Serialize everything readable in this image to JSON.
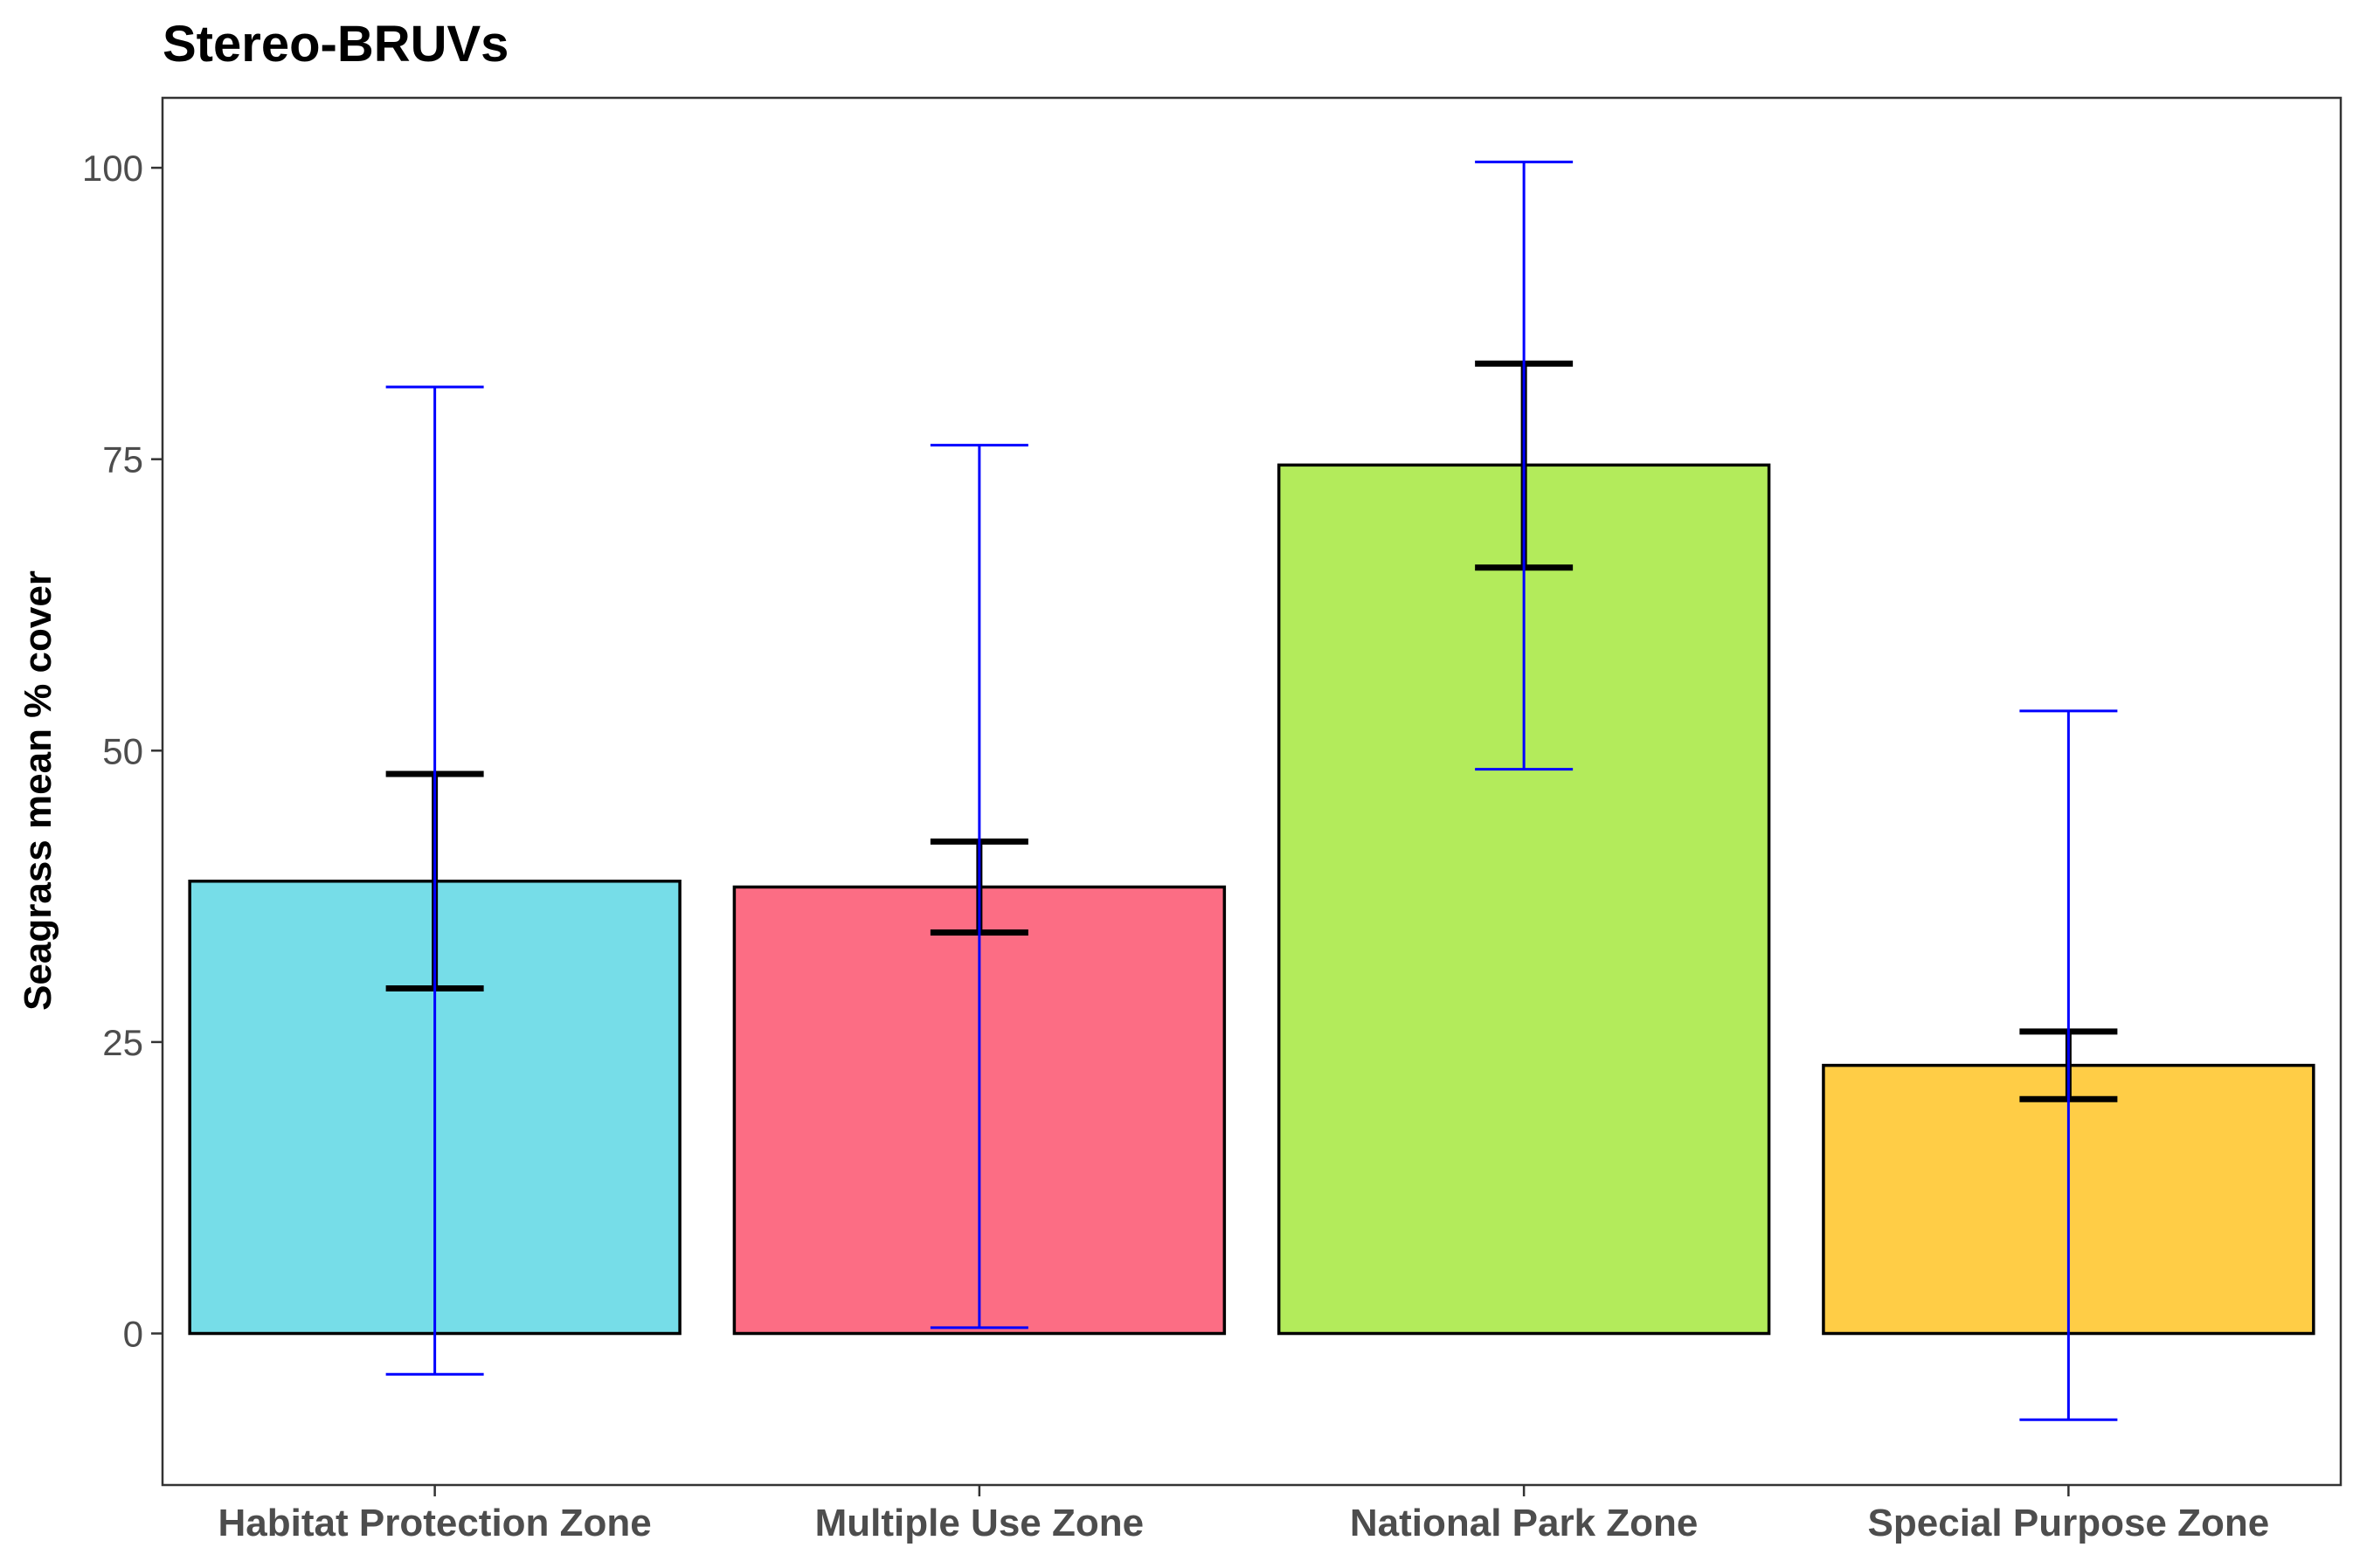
{
  "chart_data": {
    "type": "bar",
    "title": "Stereo-BRUVs",
    "xlabel": "",
    "ylabel": "Seagrass mean % cover",
    "ylim": [
      -13,
      106
    ],
    "yticks": [
      0,
      25,
      50,
      75,
      100
    ],
    "grid": false,
    "legend": "none",
    "categories": [
      "Habitat Protection Zone",
      "Multiple Use Zone",
      "National Park Zone",
      "Special Purpose Zone"
    ],
    "values": [
      38.8,
      38.3,
      74.5,
      23.0
    ],
    "colors": [
      "#76DDE8",
      "#FC6D84",
      "#B3EB5B",
      "#FFCD46"
    ],
    "se_error": [
      {
        "low": 29.6,
        "high": 48.0
      },
      {
        "low": 34.4,
        "high": 42.2
      },
      {
        "low": 65.7,
        "high": 83.2
      },
      {
        "low": 20.1,
        "high": 25.9
      }
    ],
    "ci_error": [
      {
        "low": -3.5,
        "high": 81.2
      },
      {
        "low": 0.5,
        "high": 76.2
      },
      {
        "low": 48.4,
        "high": 100.5
      },
      {
        "low": -7.4,
        "high": 53.4
      }
    ],
    "se_color": "#000000",
    "ci_color": "#0000FF"
  }
}
